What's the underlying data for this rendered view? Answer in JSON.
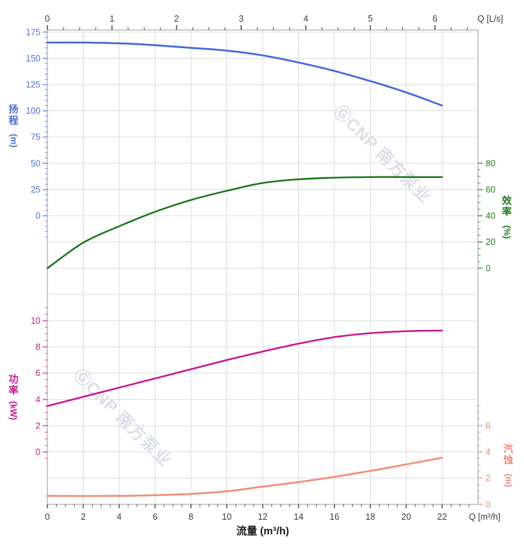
{
  "watermark": {
    "text": "ⒼCNP 南方泵业",
    "color": "#c9cfdc"
  },
  "chart_data": {
    "type": "line",
    "title": "",
    "grid": true,
    "legend": "none",
    "x_bottom": {
      "label": "流量 (m³/h)",
      "unit": "Q [m³/h]",
      "min": 0,
      "max": 24,
      "majors": [
        0,
        2,
        4,
        6,
        8,
        10,
        12,
        14,
        16,
        18,
        20,
        22
      ],
      "minor_step": 0.5,
      "minor_min": 0,
      "minor_max": 23.5,
      "label_color": "#3a3a3a",
      "tick_color": "#555555"
    },
    "x_top": {
      "unit": "Q [L/s]",
      "majors": [
        0,
        1,
        2,
        3,
        4,
        5,
        6
      ],
      "minor_step": 0.25,
      "minor_min": 0,
      "minor_max": 6.5,
      "bottom_units_per_top_unit": 3.6,
      "label_color": "#3a3a3a",
      "tick_color": "#555555"
    },
    "y_axes": [
      {
        "id": "head",
        "title": "扬程",
        "unit_text": "(m)",
        "side": "left",
        "majors": [
          175,
          150,
          125,
          100,
          75,
          50,
          25,
          0
        ],
        "max": 175,
        "units_per_row": 25,
        "row0": 0,
        "minor_step": 5,
        "minor_min": -20,
        "minor_max": 175,
        "color": "#7b93e0",
        "label_color": "#4d6fd6"
      },
      {
        "id": "efficiency",
        "title": "效率",
        "unit_text": "(%)",
        "side": "right",
        "majors": [
          80,
          60,
          40,
          20,
          0
        ],
        "max": 80,
        "units_per_row": 20,
        "row0": 5,
        "minor_step": 5,
        "minor_min": 0,
        "minor_max": 80,
        "color": "#4e9a4e",
        "label_color": "#217a21"
      },
      {
        "id": "power",
        "title": "功率",
        "unit_text": "(kW)",
        "side": "left",
        "majors": [
          10,
          8,
          6,
          4,
          2,
          0
        ],
        "max": 10,
        "units_per_row": 2,
        "row0": 11,
        "minor_step": 0.5,
        "minor_min": -0.5,
        "minor_max": 11,
        "color": "#d653ab",
        "label_color": "#c2188e"
      },
      {
        "id": "npsh",
        "title": "汽蚀",
        "unit_text": "(m)",
        "side": "right",
        "majors": [
          6,
          4,
          2,
          0
        ],
        "max": 6,
        "units_per_row": 2,
        "row0": 15,
        "minor_step": 0.5,
        "minor_min": 0,
        "minor_max": 7.5,
        "color": "#f5a18e",
        "label_color": "#f08878"
      }
    ],
    "series": [
      {
        "name": "head-curve",
        "axis": "head",
        "color": "#4466d9",
        "width": 2.6,
        "x": [
          0,
          2,
          4,
          6,
          8,
          10,
          12,
          14,
          16,
          18,
          20,
          22
        ],
        "y": [
          165,
          165,
          164.3,
          162.5,
          160,
          157.3,
          152.8,
          146,
          138,
          128.3,
          117.5,
          105
        ]
      },
      {
        "name": "efficiency-curve",
        "axis": "efficiency",
        "color": "#157515",
        "width": 2.4,
        "x": [
          0,
          2,
          4,
          6,
          8,
          10,
          12,
          14,
          16,
          18,
          20,
          22
        ],
        "y": [
          0,
          19.5,
          32,
          43,
          52,
          59,
          65,
          67.8,
          69,
          69.5,
          69.5,
          69.5
        ]
      },
      {
        "name": "power-curve",
        "axis": "power",
        "color": "#cc0f8f",
        "width": 2.4,
        "x": [
          0,
          2,
          4,
          6,
          8,
          10,
          12,
          14,
          16,
          18,
          20,
          22
        ],
        "y": [
          3.5,
          4.2,
          4.9,
          5.6,
          6.3,
          7.0,
          7.65,
          8.25,
          8.75,
          9.05,
          9.2,
          9.25
        ]
      },
      {
        "name": "npsh-curve",
        "axis": "npsh",
        "color": "#f58a74",
        "width": 2.6,
        "x": [
          0,
          2,
          4,
          6,
          8,
          10,
          12,
          14,
          16,
          18,
          20,
          22
        ],
        "y": [
          0.65,
          0.64,
          0.65,
          0.7,
          0.8,
          1.0,
          1.35,
          1.7,
          2.1,
          2.55,
          3.05,
          3.55
        ]
      }
    ],
    "plot": {
      "grid_color": "#dcdcdc",
      "border_color": "#ababab"
    }
  }
}
